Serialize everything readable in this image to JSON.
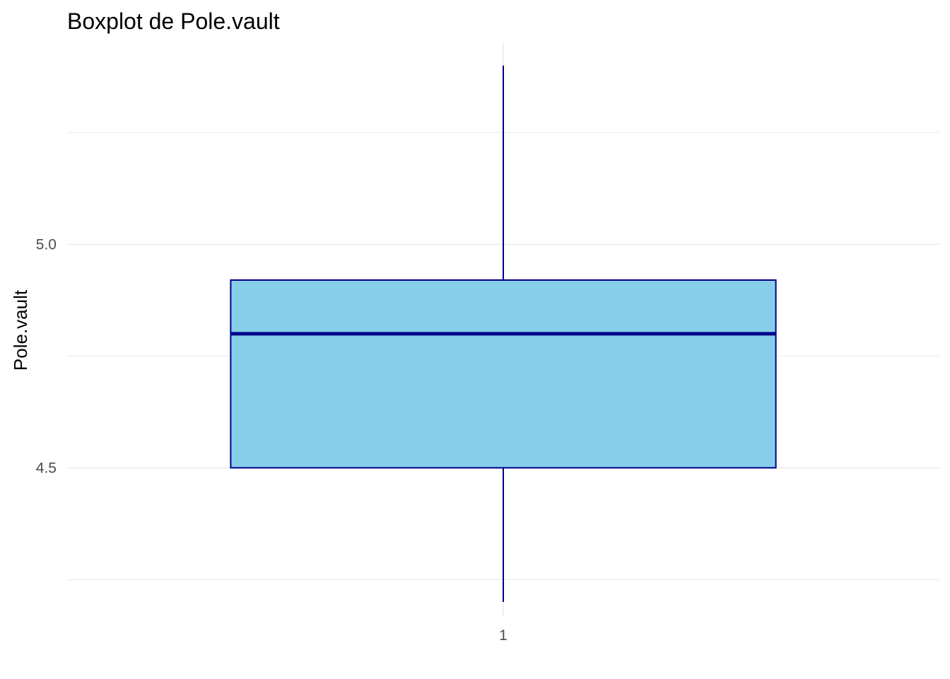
{
  "chart_data": {
    "type": "boxplot",
    "title": "Boxplot de Pole.vault",
    "xlabel": "",
    "ylabel": "Pole.vault",
    "categories": [
      "1"
    ],
    "boxes": [
      {
        "category": "1",
        "min": 4.2,
        "q1": 4.5,
        "median": 4.8,
        "q3": 4.92,
        "max": 5.4
      }
    ],
    "y_ticks": [
      4.5,
      5.0
    ],
    "y_tick_labels": [
      "4.5",
      "5.0"
    ],
    "ylim": [
      4.17,
      5.45
    ],
    "grid": true,
    "colors": {
      "box_fill": "#87CEEB",
      "box_outline": "#00008B",
      "grid": "#ebebeb"
    }
  }
}
